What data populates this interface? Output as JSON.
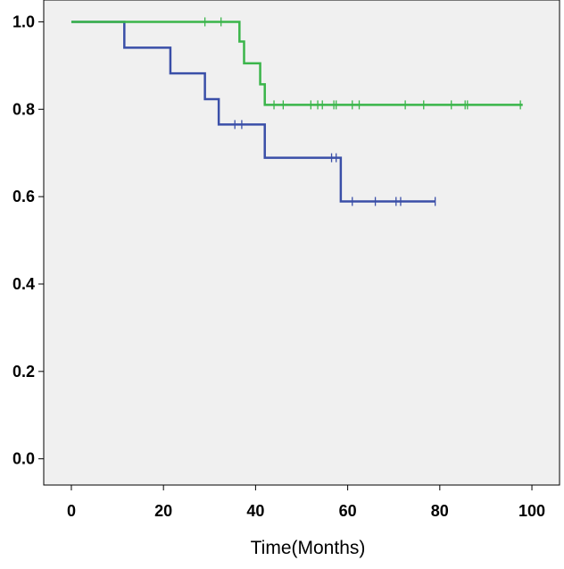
{
  "chart_data": {
    "type": "line",
    "subtype": "kaplan-meier-step",
    "title": "",
    "xlabel": "Time(Months)",
    "ylabel": "",
    "xlim": [
      -6,
      106
    ],
    "ylim": [
      -0.06,
      1.05
    ],
    "x_ticks": [
      0,
      20,
      40,
      60,
      80,
      100
    ],
    "x_tick_labels": [
      "0",
      "20",
      "40",
      "60",
      "80",
      "100"
    ],
    "y_ticks": [
      0.0,
      0.2,
      0.4,
      0.6,
      0.8,
      1.0
    ],
    "y_tick_labels": [
      "0.0",
      "0.2",
      "0.4",
      "0.6",
      "0.8",
      "1.0"
    ],
    "grid": false,
    "plot_background": "#f0f0f0",
    "series": [
      {
        "color": "#3a4fa8",
        "steps": [
          [
            0,
            1.0
          ],
          [
            11.5,
            0.941
          ],
          [
            21.5,
            0.882
          ],
          [
            29,
            0.823
          ],
          [
            32,
            0.765
          ],
          [
            42,
            0.689
          ],
          [
            58.5,
            0.589
          ],
          [
            79,
            0.589
          ]
        ],
        "censored": [
          [
            35.5,
            0.765
          ],
          [
            37,
            0.765
          ],
          [
            56.5,
            0.689
          ],
          [
            57.5,
            0.689
          ],
          [
            61,
            0.589
          ],
          [
            66,
            0.589
          ],
          [
            70.5,
            0.589
          ],
          [
            71.5,
            0.589
          ],
          [
            79,
            0.589
          ]
        ]
      },
      {
        "color": "#3ab54a",
        "steps": [
          [
            0,
            1.0
          ],
          [
            36.5,
            0.955
          ],
          [
            37.5,
            0.905
          ],
          [
            41,
            0.857
          ],
          [
            42,
            0.81
          ],
          [
            98,
            0.81
          ]
        ],
        "censored": [
          [
            29,
            1.0
          ],
          [
            32.5,
            1.0
          ],
          [
            44,
            0.81
          ],
          [
            46,
            0.81
          ],
          [
            52,
            0.81
          ],
          [
            53.5,
            0.81
          ],
          [
            54.5,
            0.81
          ],
          [
            57,
            0.81
          ],
          [
            57.5,
            0.81
          ],
          [
            61,
            0.81
          ],
          [
            62.5,
            0.81
          ],
          [
            72.5,
            0.81
          ],
          [
            76.5,
            0.81
          ],
          [
            82.5,
            0.81
          ],
          [
            85.5,
            0.81
          ],
          [
            86,
            0.81
          ],
          [
            97.5,
            0.81
          ]
        ]
      }
    ]
  }
}
